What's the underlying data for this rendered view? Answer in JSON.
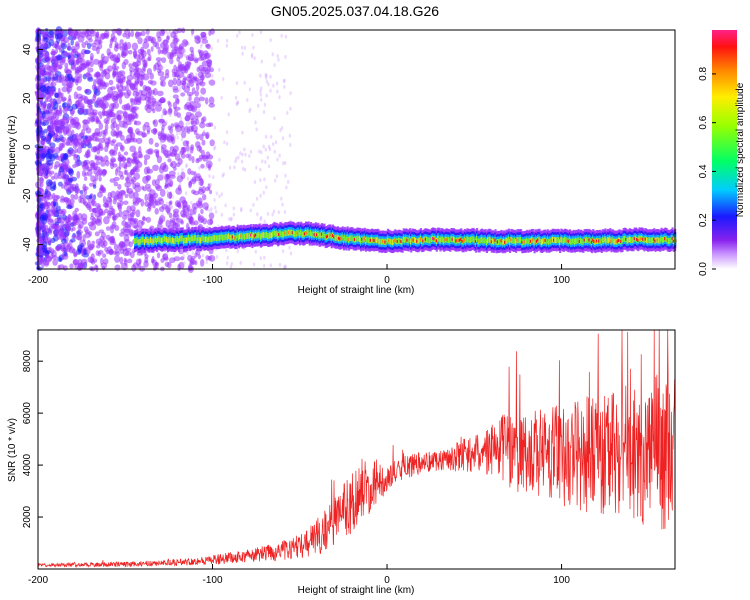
{
  "figure": {
    "title": "GN05.2025.037.04.18.G26"
  },
  "chart_data": [
    {
      "type": "heatmap",
      "xlabel": "Height of straight line (km)",
      "ylabel": "Frequency (Hz)",
      "xlim": [
        -200,
        165
      ],
      "ylim": [
        -50,
        48
      ],
      "xticks": [
        -200,
        -100,
        0,
        100
      ],
      "yticks": [
        -40,
        -20,
        0,
        20,
        40
      ],
      "colorbar": {
        "label": "Normalized spectral amplitude",
        "range": [
          0,
          0.98
        ],
        "ticks": [
          0.0,
          0.2,
          0.4,
          0.6,
          0.8
        ],
        "colormap": [
          "#ffffff",
          "#9933ff",
          "#1a1aff",
          "#00ccff",
          "#00ff66",
          "#99ff00",
          "#ffee00",
          "#ff8800",
          "#ff1111",
          "#ff2288"
        ]
      },
      "ridge": {
        "description_points": [
          [
            -145,
            -38.5
          ],
          [
            -120,
            -38
          ],
          [
            -100,
            -37.5
          ],
          [
            -80,
            -36.5
          ],
          [
            -60,
            -35.5
          ],
          [
            -45,
            -35.5
          ],
          [
            -30,
            -37
          ],
          [
            -15,
            -38
          ],
          [
            0,
            -38.5
          ],
          [
            20,
            -38
          ],
          [
            40,
            -38
          ],
          [
            60,
            -38.5
          ],
          [
            80,
            -38.5
          ],
          [
            100,
            -38.5
          ],
          [
            120,
            -38.5
          ],
          [
            140,
            -38
          ],
          [
            165,
            -38
          ]
        ],
        "start_x": -145
      }
    },
    {
      "type": "line",
      "xlabel": "Height of straight line (km)",
      "ylabel": "SNR (10 * v/v)",
      "xlim": [
        -200,
        165
      ],
      "ylim": [
        0,
        9200
      ],
      "xticks": [
        -200,
        -100,
        0,
        100
      ],
      "yticks": [
        2000,
        4000,
        6000,
        8000
      ],
      "series": [
        {
          "color": "#ee2222",
          "envelope": [
            [
              -200,
              150
            ],
            [
              -150,
              180
            ],
            [
              -120,
              250
            ],
            [
              -100,
              350
            ],
            [
              -80,
              500
            ],
            [
              -60,
              700
            ],
            [
              -45,
              1000
            ],
            [
              -35,
              1500
            ],
            [
              -25,
              2200
            ],
            [
              -15,
              3000
            ],
            [
              0,
              3500
            ],
            [
              10,
              3900
            ],
            [
              20,
              4100
            ],
            [
              30,
              4200
            ],
            [
              40,
              4300
            ],
            [
              50,
              4400
            ],
            [
              60,
              4600
            ],
            [
              70,
              4600
            ],
            [
              80,
              4500
            ],
            [
              100,
              4400
            ],
            [
              120,
              4400
            ],
            [
              140,
              4500
            ],
            [
              165,
              4500
            ]
          ],
          "spread": [
            [
              -200,
              60
            ],
            [
              -120,
              120
            ],
            [
              -80,
              250
            ],
            [
              -50,
              450
            ],
            [
              -30,
              1000
            ],
            [
              -15,
              1300
            ],
            [
              0,
              500
            ],
            [
              30,
              400
            ],
            [
              55,
              800
            ],
            [
              70,
              1500
            ],
            [
              100,
              2000
            ],
            [
              130,
              2500
            ],
            [
              165,
              3200
            ]
          ]
        }
      ]
    }
  ]
}
